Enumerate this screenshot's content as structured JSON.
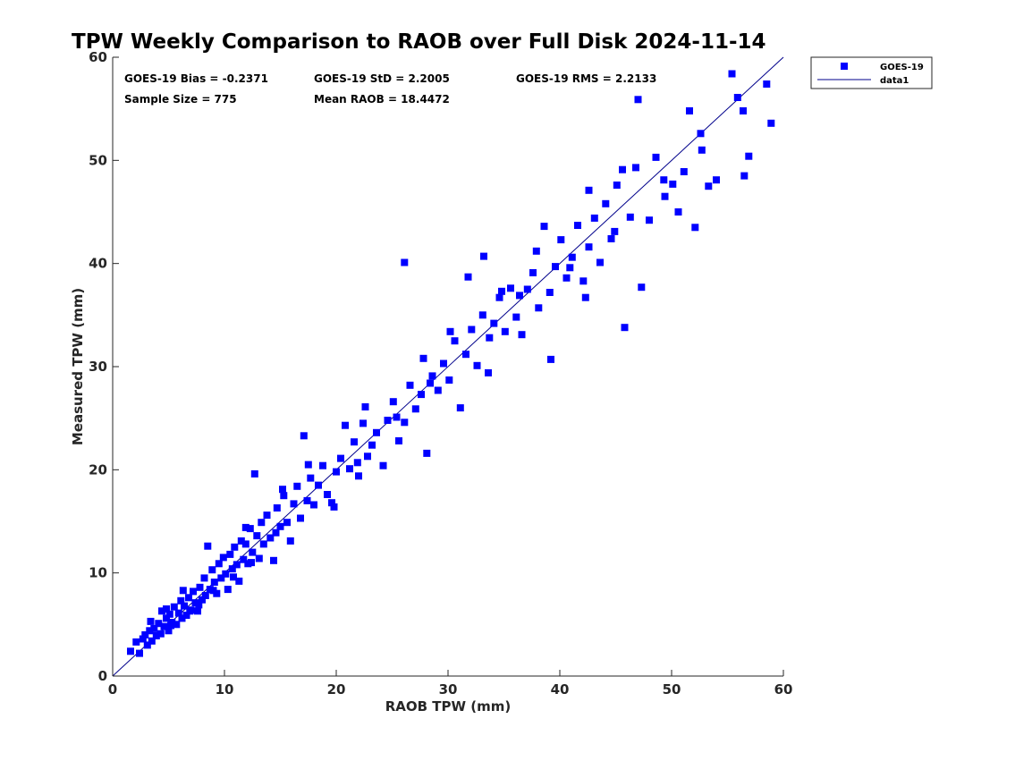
{
  "chart_data": {
    "type": "scatter",
    "title": "TPW Weekly Comparison to RAOB over Full Disk 2024-11-14",
    "xlabel": "RAOB TPW (mm)",
    "ylabel": "Measured TPW (mm)",
    "xlim": [
      0,
      60
    ],
    "ylim": [
      0,
      60
    ],
    "xticks": [
      "0",
      "10",
      "20",
      "30",
      "40",
      "50",
      "60"
    ],
    "yticks": [
      "0",
      "10",
      "20",
      "30",
      "40",
      "50",
      "60"
    ],
    "grid": false,
    "legend_position": "outside-top-right",
    "stats": [
      "GOES-19 Bias = -0.2371",
      "GOES-19 StD = 2.2005",
      "GOES-19 RMS = 2.2133",
      "Sample Size = 775",
      "Mean RAOB = 18.4472"
    ],
    "series": [
      {
        "name": "GOES-19",
        "kind": "scatter",
        "marker": "square",
        "color": "#0000ff",
        "points": [
          [
            1.6,
            2.4
          ],
          [
            2.1,
            3.3
          ],
          [
            2.4,
            2.2
          ],
          [
            2.7,
            3.6
          ],
          [
            2.9,
            4.0
          ],
          [
            3.1,
            3.0
          ],
          [
            3.3,
            4.4
          ],
          [
            3.5,
            3.4
          ],
          [
            3.7,
            4.6
          ],
          [
            3.9,
            3.9
          ],
          [
            4.1,
            5.1
          ],
          [
            4.3,
            4.1
          ],
          [
            4.4,
            6.3
          ],
          [
            4.6,
            4.8
          ],
          [
            4.8,
            5.6
          ],
          [
            5.0,
            4.4
          ],
          [
            5.1,
            6.0
          ],
          [
            5.3,
            5.2
          ],
          [
            5.5,
            6.7
          ],
          [
            5.7,
            5.0
          ],
          [
            5.9,
            6.1
          ],
          [
            6.1,
            7.3
          ],
          [
            6.2,
            5.6
          ],
          [
            6.4,
            6.8
          ],
          [
            6.6,
            5.9
          ],
          [
            6.8,
            7.6
          ],
          [
            7.0,
            6.4
          ],
          [
            7.2,
            8.2
          ],
          [
            7.4,
            7.1
          ],
          [
            7.6,
            6.3
          ],
          [
            7.8,
            8.6
          ],
          [
            8.0,
            7.4
          ],
          [
            8.2,
            9.5
          ],
          [
            8.3,
            7.8
          ],
          [
            8.5,
            12.6
          ],
          [
            8.7,
            8.4
          ],
          [
            8.9,
            10.3
          ],
          [
            9.1,
            9.1
          ],
          [
            9.3,
            8.0
          ],
          [
            9.5,
            10.9
          ],
          [
            9.7,
            9.5
          ],
          [
            9.9,
            11.5
          ],
          [
            10.1,
            9.9
          ],
          [
            10.3,
            8.4
          ],
          [
            10.5,
            11.8
          ],
          [
            10.7,
            10.4
          ],
          [
            10.9,
            12.5
          ],
          [
            11.1,
            10.8
          ],
          [
            11.3,
            9.2
          ],
          [
            11.5,
            13.1
          ],
          [
            11.7,
            11.3
          ],
          [
            11.9,
            12.8
          ],
          [
            12.1,
            10.9
          ],
          [
            12.3,
            14.3
          ],
          [
            12.5,
            12.0
          ],
          [
            12.7,
            19.6
          ],
          [
            12.9,
            13.6
          ],
          [
            13.1,
            11.4
          ],
          [
            13.3,
            14.9
          ],
          [
            13.5,
            12.8
          ],
          [
            13.8,
            15.6
          ],
          [
            14.1,
            13.4
          ],
          [
            14.4,
            11.2
          ],
          [
            14.7,
            16.3
          ],
          [
            15.0,
            14.5
          ],
          [
            15.3,
            17.5
          ],
          [
            15.6,
            14.9
          ],
          [
            15.9,
            13.1
          ],
          [
            16.2,
            16.7
          ],
          [
            16.5,
            18.4
          ],
          [
            16.8,
            15.3
          ],
          [
            17.1,
            23.3
          ],
          [
            17.4,
            17.0
          ],
          [
            17.7,
            19.2
          ],
          [
            18.0,
            16.6
          ],
          [
            18.4,
            18.5
          ],
          [
            18.8,
            20.4
          ],
          [
            19.2,
            17.6
          ],
          [
            19.6,
            16.8
          ],
          [
            20.0,
            19.8
          ],
          [
            20.4,
            21.1
          ],
          [
            20.8,
            24.3
          ],
          [
            21.2,
            20.1
          ],
          [
            21.6,
            22.7
          ],
          [
            22.0,
            19.4
          ],
          [
            22.4,
            24.5
          ],
          [
            22.8,
            21.3
          ],
          [
            23.2,
            22.4
          ],
          [
            23.6,
            23.6
          ],
          [
            24.2,
            20.4
          ],
          [
            24.6,
            24.8
          ],
          [
            25.1,
            26.6
          ],
          [
            25.6,
            22.8
          ],
          [
            26.1,
            24.6
          ],
          [
            26.6,
            28.2
          ],
          [
            27.1,
            25.9
          ],
          [
            27.6,
            27.3
          ],
          [
            28.1,
            21.6
          ],
          [
            28.6,
            29.1
          ],
          [
            29.1,
            27.7
          ],
          [
            29.6,
            30.3
          ],
          [
            30.1,
            28.7
          ],
          [
            30.6,
            32.5
          ],
          [
            31.1,
            26.0
          ],
          [
            31.6,
            31.2
          ],
          [
            32.1,
            33.6
          ],
          [
            32.6,
            30.1
          ],
          [
            33.1,
            35.0
          ],
          [
            33.6,
            29.4
          ],
          [
            34.1,
            34.2
          ],
          [
            34.6,
            36.7
          ],
          [
            35.1,
            33.4
          ],
          [
            35.6,
            37.6
          ],
          [
            36.1,
            34.8
          ],
          [
            36.6,
            33.1
          ],
          [
            37.1,
            37.5
          ],
          [
            37.6,
            39.1
          ],
          [
            38.1,
            35.7
          ],
          [
            38.6,
            43.6
          ],
          [
            39.1,
            37.2
          ],
          [
            39.6,
            39.7
          ],
          [
            40.1,
            42.3
          ],
          [
            40.6,
            38.6
          ],
          [
            41.1,
            40.6
          ],
          [
            41.6,
            43.7
          ],
          [
            42.1,
            38.3
          ],
          [
            42.6,
            41.6
          ],
          [
            43.1,
            44.4
          ],
          [
            43.6,
            40.1
          ],
          [
            44.1,
            45.8
          ],
          [
            44.6,
            42.4
          ],
          [
            45.1,
            47.6
          ],
          [
            45.8,
            33.8
          ],
          [
            46.3,
            44.5
          ],
          [
            46.8,
            49.3
          ],
          [
            47.3,
            37.7
          ],
          [
            48.0,
            44.2
          ],
          [
            48.6,
            50.3
          ],
          [
            49.4,
            46.5
          ],
          [
            50.1,
            47.7
          ],
          [
            50.6,
            45.0
          ],
          [
            51.1,
            48.9
          ],
          [
            51.6,
            54.8
          ],
          [
            52.1,
            43.5
          ],
          [
            52.6,
            52.6
          ],
          [
            53.3,
            47.5
          ],
          [
            54.0,
            48.1
          ],
          [
            55.4,
            58.4
          ],
          [
            55.9,
            56.1
          ],
          [
            56.4,
            54.8
          ],
          [
            56.5,
            48.5
          ],
          [
            56.9,
            50.4
          ],
          [
            58.5,
            57.4
          ],
          [
            58.9,
            53.6
          ],
          [
            26.1,
            40.1
          ],
          [
            33.2,
            40.7
          ],
          [
            39.2,
            30.7
          ],
          [
            42.3,
            36.7
          ],
          [
            47.0,
            55.9
          ],
          [
            31.8,
            38.7
          ],
          [
            5.2,
            4.9
          ],
          [
            6.9,
            6.3
          ],
          [
            7.7,
            6.9
          ],
          [
            9.0,
            8.3
          ],
          [
            10.8,
            9.6
          ],
          [
            12.4,
            11.0
          ],
          [
            14.6,
            13.9
          ],
          [
            19.8,
            16.4
          ],
          [
            21.9,
            20.7
          ],
          [
            25.4,
            25.1
          ],
          [
            28.4,
            28.4
          ],
          [
            33.7,
            32.8
          ],
          [
            36.4,
            36.9
          ],
          [
            40.9,
            39.6
          ],
          [
            44.9,
            43.1
          ],
          [
            49.3,
            48.1
          ],
          [
            52.7,
            51.0
          ],
          [
            3.4,
            5.3
          ],
          [
            4.8,
            6.5
          ],
          [
            6.3,
            8.3
          ],
          [
            11.9,
            14.4
          ],
          [
            15.2,
            18.1
          ],
          [
            17.5,
            20.5
          ],
          [
            22.6,
            26.1
          ],
          [
            27.8,
            30.8
          ],
          [
            30.2,
            33.4
          ],
          [
            34.8,
            37.3
          ],
          [
            37.9,
            41.2
          ],
          [
            42.6,
            47.1
          ],
          [
            45.6,
            49.1
          ]
        ]
      },
      {
        "name": "data1",
        "kind": "line",
        "color": "#00008b",
        "points": [
          [
            0,
            0
          ],
          [
            60,
            60
          ]
        ]
      }
    ]
  }
}
